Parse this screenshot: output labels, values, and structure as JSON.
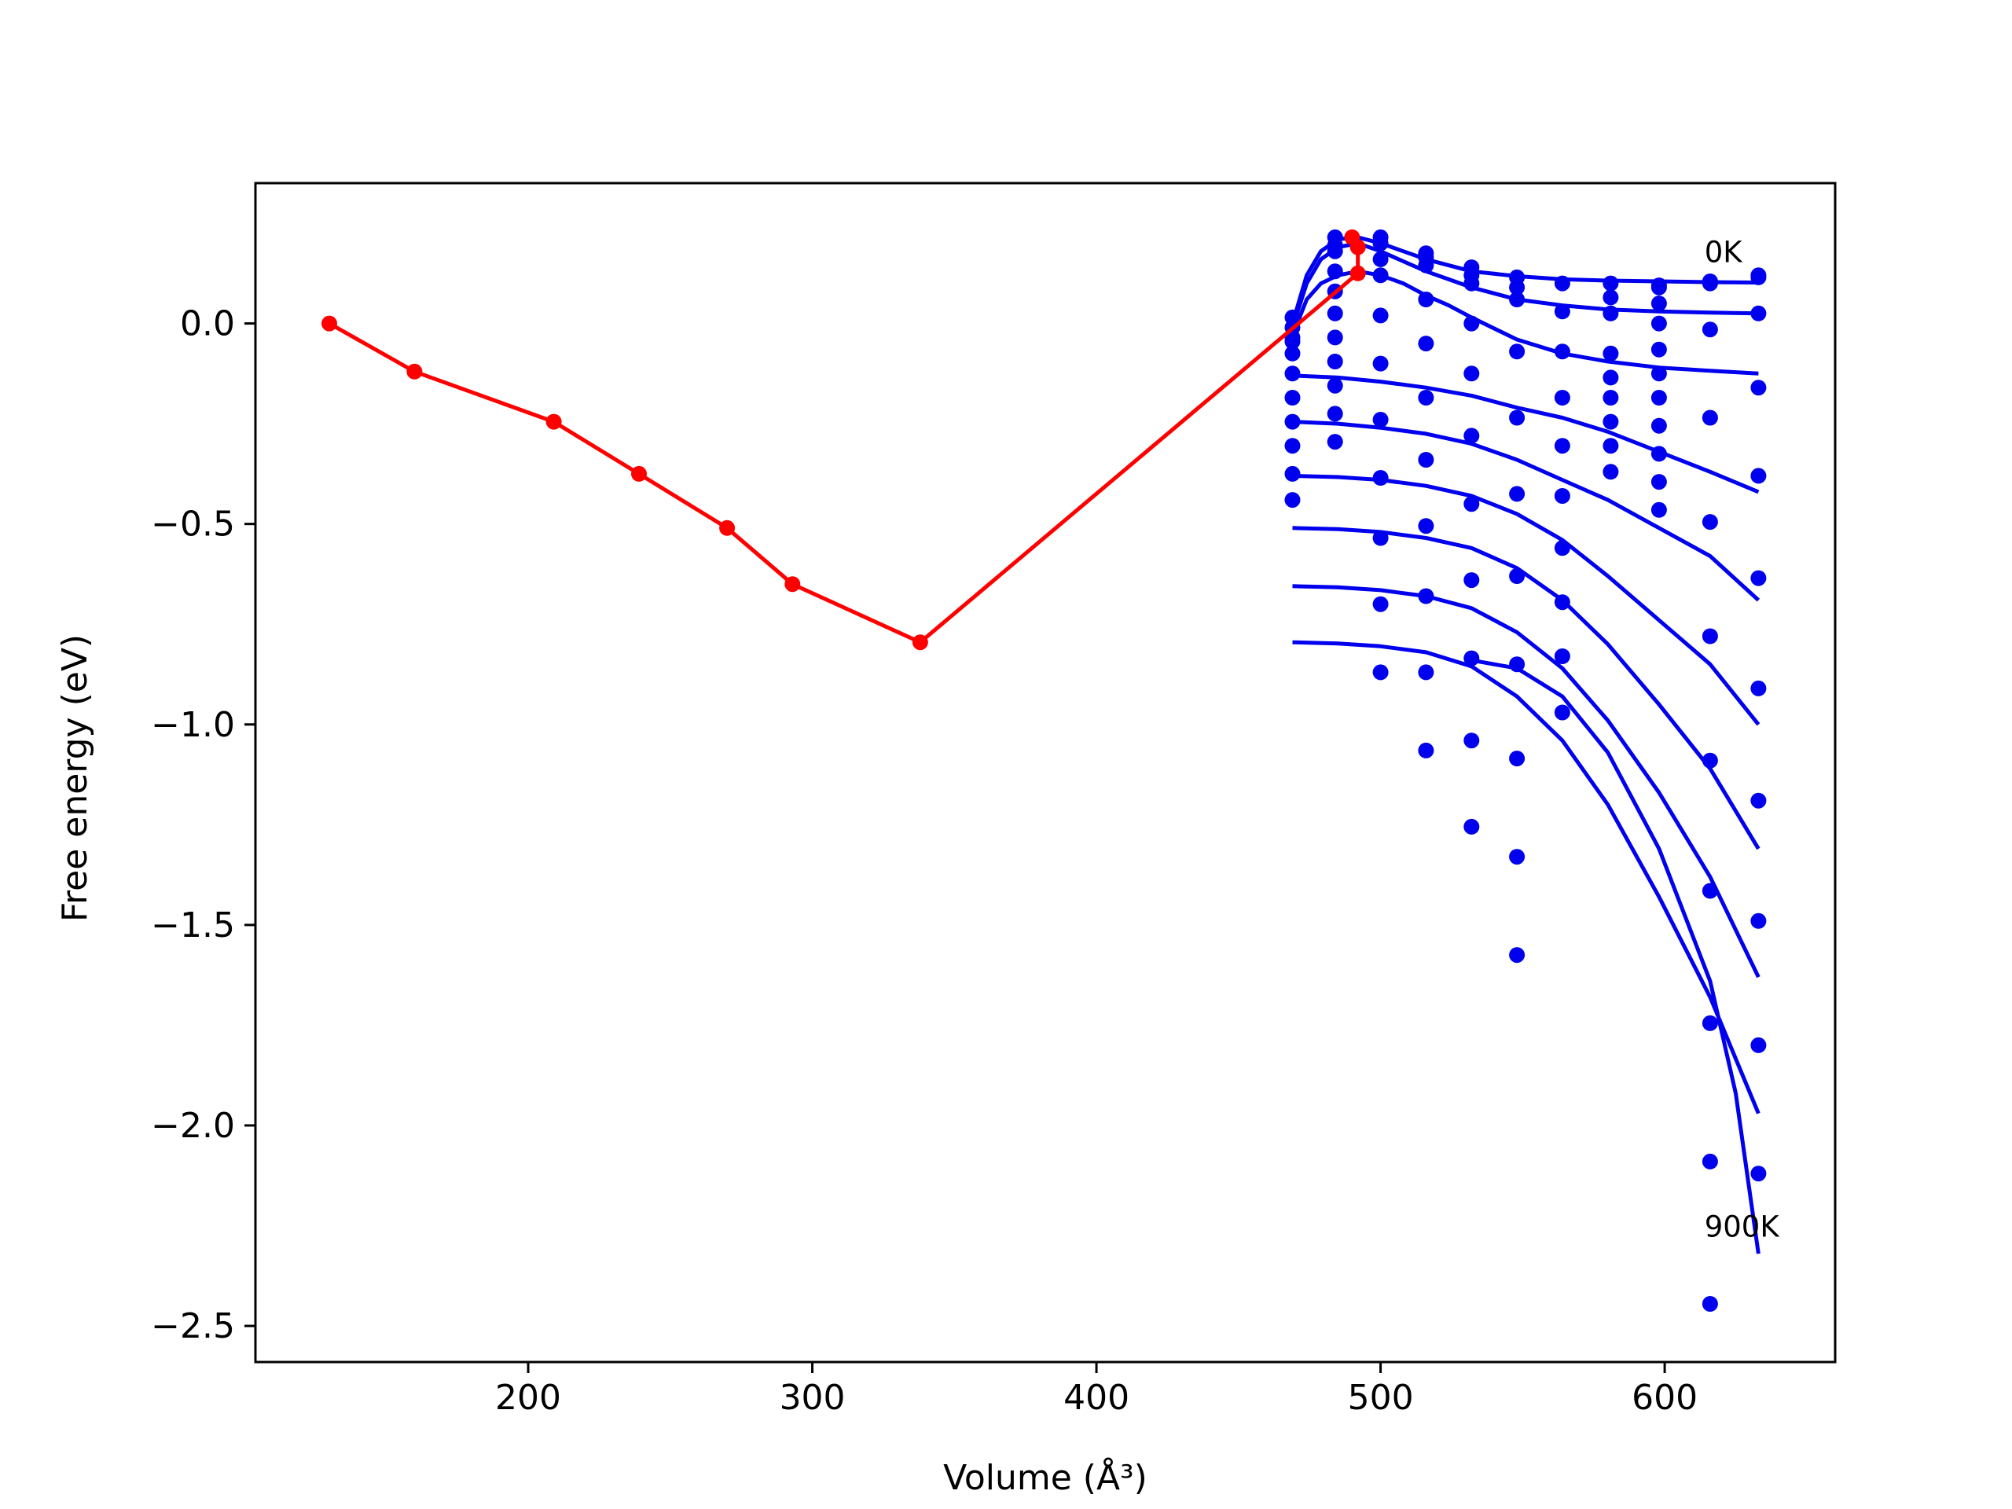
{
  "chart_data": {
    "type": "line",
    "title": "",
    "xlabel": "Volume (Å³)",
    "ylabel": "Free energy (eV)",
    "xlim": [
      104,
      660
    ],
    "ylim": [
      -2.59,
      0.35
    ],
    "xticks": [
      200,
      300,
      400,
      500,
      600
    ],
    "yticks": [
      0.0,
      -0.5,
      -1.0,
      -1.5,
      -2.0,
      -2.5
    ],
    "xtick_labels": [
      "200",
      "300",
      "400",
      "500",
      "600"
    ],
    "ytick_labels": [
      "0.0",
      "−0.5",
      "−1.0",
      "−1.5",
      "−2.0",
      "−2.5"
    ],
    "grid": false,
    "annotations": [
      {
        "text": "0K",
        "x": 614,
        "y": 0.18
      },
      {
        "text": "900K",
        "x": 614,
        "y": -2.25
      }
    ],
    "colors": {
      "red": "#ff0000",
      "blue": "#0000ee"
    },
    "red_path": {
      "x": [
        130,
        160,
        209,
        239,
        270,
        293,
        338,
        492,
        492,
        490
      ],
      "y": [
        0.0,
        -0.12,
        -0.245,
        -0.375,
        -0.51,
        -0.65,
        -0.795,
        0.125,
        0.19,
        0.215
      ]
    },
    "blue_curves": [
      {
        "x": [
          469,
          474,
          479,
          485,
          492,
          500,
          508,
          516,
          524,
          532,
          548,
          564,
          580,
          598,
          616,
          633
        ],
        "y": [
          0.0,
          0.12,
          0.18,
          0.21,
          0.215,
          0.2,
          0.18,
          0.16,
          0.145,
          0.13,
          0.118,
          0.11,
          0.107,
          0.105,
          0.103,
          0.102
        ]
      },
      {
        "x": [
          469,
          474,
          479,
          485,
          492,
          500,
          508,
          516,
          524,
          532,
          548,
          564,
          580,
          598,
          616,
          633
        ],
        "y": [
          -0.01,
          0.1,
          0.16,
          0.19,
          0.2,
          0.18,
          0.155,
          0.13,
          0.11,
          0.09,
          0.06,
          0.045,
          0.035,
          0.03,
          0.027,
          0.025
        ]
      },
      {
        "x": [
          469,
          474,
          479,
          485,
          492,
          500,
          508,
          516,
          524,
          532,
          548,
          564,
          580,
          598,
          616,
          633
        ],
        "y": [
          -0.03,
          0.06,
          0.1,
          0.12,
          0.13,
          0.12,
          0.1,
          0.07,
          0.045,
          0.015,
          -0.04,
          -0.075,
          -0.095,
          -0.11,
          -0.118,
          -0.125
        ]
      },
      {
        "x": [
          469,
          485,
          500,
          516,
          532,
          548,
          564,
          580,
          598,
          616,
          633
        ],
        "y": [
          -0.13,
          -0.135,
          -0.145,
          -0.16,
          -0.18,
          -0.21,
          -0.235,
          -0.27,
          -0.32,
          -0.37,
          -0.42
        ]
      },
      {
        "x": [
          469,
          485,
          500,
          516,
          532,
          548,
          564,
          580,
          598,
          616,
          633
        ],
        "y": [
          -0.245,
          -0.25,
          -0.26,
          -0.275,
          -0.3,
          -0.34,
          -0.39,
          -0.44,
          -0.51,
          -0.58,
          -0.69
        ]
      },
      {
        "x": [
          469,
          485,
          500,
          516,
          532,
          548,
          564,
          580,
          598,
          616,
          633
        ],
        "y": [
          -0.38,
          -0.383,
          -0.39,
          -0.405,
          -0.43,
          -0.475,
          -0.54,
          -0.63,
          -0.74,
          -0.85,
          -1.0
        ]
      },
      {
        "x": [
          469,
          485,
          500,
          516,
          532,
          548,
          564,
          580,
          598,
          616,
          633
        ],
        "y": [
          -0.51,
          -0.513,
          -0.52,
          -0.535,
          -0.56,
          -0.61,
          -0.69,
          -0.8,
          -0.95,
          -1.11,
          -1.31
        ]
      },
      {
        "x": [
          469,
          485,
          500,
          516,
          532,
          548,
          564,
          580,
          598,
          616,
          633
        ],
        "y": [
          -0.655,
          -0.658,
          -0.665,
          -0.68,
          -0.71,
          -0.77,
          -0.86,
          -0.99,
          -1.17,
          -1.38,
          -1.63
        ]
      },
      {
        "x": [
          469,
          485,
          500,
          516,
          532,
          548,
          564,
          580,
          598,
          616,
          633
        ],
        "y": [
          -0.795,
          -0.798,
          -0.805,
          -0.82,
          -0.855,
          -0.93,
          -1.04,
          -1.2,
          -1.43,
          -1.68,
          -1.97
        ]
      },
      {
        "x": [
          532,
          548,
          564,
          580,
          598,
          616,
          625,
          633
        ],
        "y": [
          -0.84,
          -0.86,
          -0.93,
          -1.07,
          -1.31,
          -1.64,
          -1.92,
          -2.32
        ]
      }
    ],
    "blue_points": {
      "x": [
        469,
        469,
        469,
        469,
        469,
        469,
        469,
        469,
        469,
        469,
        469,
        484,
        484,
        484,
        484,
        484,
        484,
        484,
        484,
        484,
        484,
        484,
        500,
        500,
        500,
        500,
        500,
        500,
        500,
        500,
        500,
        500,
        500,
        516,
        516,
        516,
        516,
        516,
        516,
        516,
        516,
        516,
        516,
        516,
        532,
        532,
        532,
        532,
        532,
        532,
        532,
        532,
        532,
        532,
        532,
        548,
        548,
        548,
        548,
        548,
        548,
        548,
        548,
        548,
        548,
        548,
        564,
        564,
        564,
        564,
        564,
        564,
        564,
        564,
        564,
        564,
        581,
        581,
        581,
        581,
        581,
        581,
        581,
        581,
        581,
        598,
        598,
        598,
        598,
        598,
        598,
        598,
        598,
        598,
        598,
        598,
        616,
        616,
        616,
        616,
        616,
        616,
        616,
        616,
        616,
        616,
        616,
        633,
        633,
        633,
        633,
        633,
        633,
        633,
        633,
        633,
        633,
        633
      ],
      "y": [
        0.015,
        -0.035,
        -0.075,
        -0.125,
        -0.185,
        -0.245,
        -0.305,
        -0.375,
        -0.44,
        -0.01,
        -0.045,
        0.195,
        0.18,
        0.08,
        0.025,
        -0.035,
        -0.095,
        -0.155,
        -0.225,
        -0.295,
        0.215,
        0.13,
        0.215,
        0.12,
        0.02,
        -0.1,
        -0.24,
        -0.385,
        -0.535,
        -0.7,
        -0.87,
        0.2,
        0.16,
        0.175,
        0.06,
        -0.05,
        -0.185,
        -0.34,
        -0.505,
        -0.68,
        -0.87,
        -1.065,
        0.165,
        0.145,
        0.14,
        0.0,
        -0.125,
        -0.28,
        -0.45,
        -0.64,
        -0.835,
        -1.04,
        -1.255,
        0.12,
        0.1,
        0.115,
        0.06,
        -0.07,
        -0.235,
        -0.425,
        -0.63,
        -0.85,
        -1.085,
        -1.33,
        -1.575,
        0.09,
        0.1,
        0.03,
        -0.07,
        -0.185,
        -0.305,
        -0.43,
        -0.56,
        -0.695,
        -0.83,
        -0.97,
        0.1,
        0.065,
        0.025,
        -0.075,
        -0.135,
        -0.185,
        -0.245,
        -0.305,
        -0.37,
        0.095,
        0.05,
        0.0,
        -0.065,
        -0.125,
        -0.185,
        -0.255,
        -0.325,
        -0.395,
        -0.465,
        0.09,
        0.105,
        -0.015,
        -0.235,
        -0.495,
        -0.78,
        -1.09,
        -1.415,
        -1.745,
        -2.09,
        -2.445,
        0.1,
        0.115,
        0.025,
        -0.16,
        -0.38,
        -0.635,
        -0.91,
        -1.19,
        -1.49,
        -1.8,
        -2.12,
        0.12
      ]
    }
  }
}
